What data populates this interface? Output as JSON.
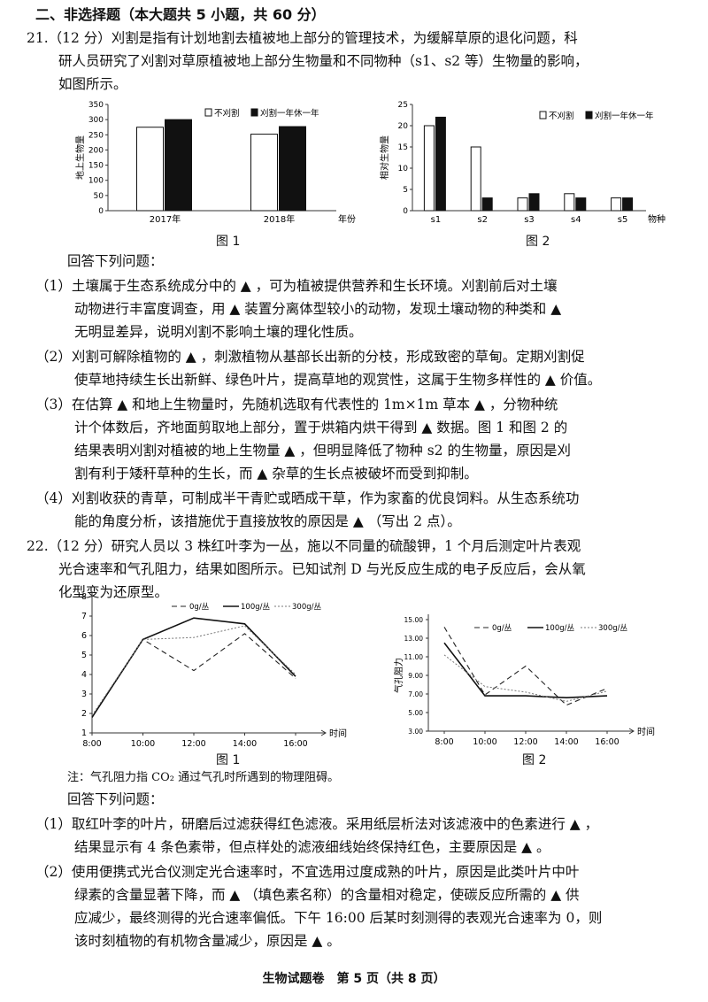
{
  "section_title": "二、非选择题（本大题共 5 小题，共 60 分）",
  "q21": {
    "intro_lines": [
      "21.（12 分）刈割是指有计划地割去植被地上部分的管理技术，为缓解草原的退化问题，科",
      "研人员研究了刈割对草原植被地上部分生物量和不同物种（s1、s2 等）生物量的影响，",
      "如图所示。"
    ],
    "fig1_caption": "图 1",
    "fig2_caption": "图 2",
    "prompt": "回答下列问题：",
    "sub_lines": [
      "（1）土壤属于生态系统成分中的 ▲ ，可为植被提供营养和生长环境。刈割前后对土壤",
      "动物进行丰富度调查，用 ▲ 装置分离体型较小的动物，发现土壤动物的种类和 ▲",
      "无明显差异，说明刈割不影响土壤的理化性质。",
      "（2）刈割可解除植物的 ▲ ，刺激植物从基部长出新的分枝，形成致密的草甸。定期刈割促",
      "使草地持续生长出新鲜、绿色叶片，提高草地的观赏性，这属于生物多样性的 ▲ 价值。",
      "（3）在估算 ▲ 和地上生物量时，先随机选取有代表性的 1m×1m 草本 ▲ ，分物种统",
      "计个体数后，齐地面剪取地上部分，置于烘箱内烘干得到 ▲ 数据。图 1 和图 2 的",
      "结果表明刈割对植被的地上生物量 ▲ ，但明显降低了物种 s2 的生物量，原因是刈",
      "割有利于矮秆草种的生长，而 ▲ 杂草的生长点被破坏而受到抑制。",
      "（4）刈割收获的青草，可制成半干青贮或晒成干草，作为家畜的优良饲料。从生态系统功",
      "能的角度分析，该措施优于直接放牧的原因是 ▲ （写出 2 点）。"
    ]
  },
  "q22": {
    "intro_lines": [
      "22.（12 分）研究人员以 3 株红叶李为一丛，施以不同量的硫酸钾，1 个月后测定叶片表观",
      "光合速率和气孔阻力，结果如图所示。已知试剂 D 与光反应生成的电子反应后，会从氧",
      "化型变为还原型。"
    ],
    "fig1_caption": "图 1",
    "fig2_caption": "图 2",
    "note": "注：气孔阻力指 CO₂ 通过气孔时所遇到的物理阻碍。",
    "prompt": "回答下列问题：",
    "sub_lines": [
      "（1）取红叶李的叶片，研磨后过滤获得红色滤液。采用纸层析法对该滤液中的色素进行 ▲ ，",
      "结果显示有 4 条色素带，但点样处的滤液细线始终保持红色，主要原因是 ▲ 。",
      "（2）使用便携式光合仪测定光合速率时，不宜选用过度成熟的叶片，原因是此类叶片中叶",
      "绿素的含量显著下降，而 ▲ （填色素名称）的含量相对稳定，使碳反应所需的 ▲ 供",
      "应减少，最终测得的光合速率偏低。下午 16:00 后某时刻测得的表观光合速率为 0，则",
      "该时刻植物的有机物含量减少，原因是 ▲ 。"
    ]
  },
  "footer": "生物试题卷　第 5 页（共 8 页）",
  "chart_data": [
    {
      "type": "bar",
      "title": "",
      "ylabel": "地上生物量",
      "xlabel": "年份",
      "categories": [
        "2017年",
        "2018年"
      ],
      "series": [
        {
          "name": "不刈割",
          "values": [
            275,
            252
          ]
        },
        {
          "name": "刈割一年休一年",
          "values": [
            300,
            277
          ]
        }
      ],
      "ylim": [
        0,
        350
      ],
      "yticks": [
        0,
        50,
        100,
        150,
        200,
        250,
        300,
        350
      ],
      "legend": "top-right"
    },
    {
      "type": "bar",
      "title": "",
      "ylabel": "相对生物量",
      "xlabel": "物种",
      "categories": [
        "s1",
        "s2",
        "s3",
        "s4",
        "s5"
      ],
      "series": [
        {
          "name": "不刈割",
          "values": [
            20,
            15,
            3,
            4,
            3
          ]
        },
        {
          "name": "刈割一年休一年",
          "values": [
            22,
            3,
            4,
            3,
            3
          ]
        }
      ],
      "ylim": [
        0,
        25
      ],
      "yticks": [
        0,
        5,
        10,
        15,
        20,
        25
      ],
      "legend": "top-right"
    },
    {
      "type": "line",
      "title": "",
      "ylabel": "表观光合速率",
      "xlabel": "时间",
      "x": [
        "8:00",
        "10:00",
        "12:00",
        "14:00",
        "16:00"
      ],
      "series": [
        {
          "name": "0g/丛",
          "values": [
            1.8,
            5.8,
            4.2,
            6.1,
            3.8
          ]
        },
        {
          "name": "100g/丛",
          "values": [
            1.8,
            5.8,
            6.9,
            6.6,
            3.9
          ]
        },
        {
          "name": "300g/丛",
          "values": [
            1.9,
            5.8,
            5.9,
            6.5,
            4.0
          ]
        }
      ],
      "ylim": [
        1,
        8
      ],
      "yticks": [
        1,
        2,
        3,
        4,
        5,
        6,
        7,
        8
      ],
      "legend": "top"
    },
    {
      "type": "line",
      "title": "",
      "ylabel": "气孔阻力",
      "xlabel": "时间",
      "x": [
        "8:00",
        "10:00",
        "12:00",
        "14:00",
        "16:00"
      ],
      "series": [
        {
          "name": "0g/丛",
          "values": [
            14.2,
            6.9,
            10.0,
            5.8,
            7.6
          ]
        },
        {
          "name": "100g/丛",
          "values": [
            12.5,
            6.8,
            6.8,
            6.6,
            6.8
          ]
        },
        {
          "name": "300g/丛",
          "values": [
            11.2,
            7.8,
            7.2,
            6.2,
            7.3
          ]
        }
      ],
      "ylim": [
        3,
        15
      ],
      "yticks": [
        "3.00",
        "5.00",
        "7.00",
        "9.00",
        "11.00",
        "13.00",
        "15.00"
      ],
      "legend": "top"
    }
  ]
}
